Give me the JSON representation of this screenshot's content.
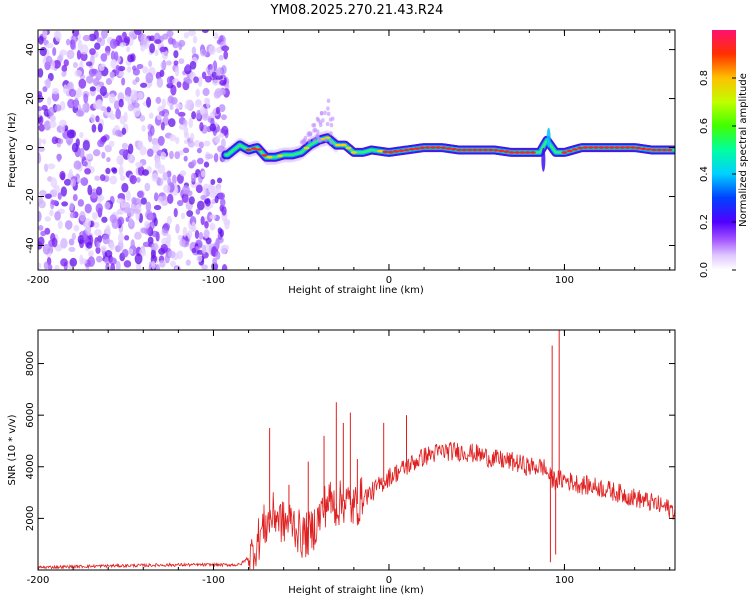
{
  "chart_data": [
    {
      "type": "heatmap",
      "title": "YM08.2025.270.21.43.R24",
      "xlabel": "Height of straight line (km)",
      "ylabel": "Frequency (Hz)",
      "xlim": [
        -200,
        163
      ],
      "ylim": [
        -50,
        48
      ],
      "xticks": [
        -200,
        -100,
        0,
        100
      ],
      "yticks": [
        -40,
        -20,
        0,
        20,
        40
      ],
      "x_tick_labels": [
        "-200",
        "-100",
        "0",
        "100"
      ],
      "y_tick_labels": [
        "-40",
        "-20",
        "0",
        "20",
        "40"
      ],
      "colorbar": {
        "label": "Normalized spectral amplitude",
        "range": [
          0,
          1
        ],
        "ticks": [
          0.0,
          0.2,
          0.4,
          0.6,
          0.8
        ],
        "tick_labels": [
          "0.0",
          "0.2",
          "0.4",
          "0.6",
          "0.8"
        ]
      },
      "noise_region_x": [
        -200,
        -92
      ],
      "ridge": [
        {
          "x": -92,
          "y": -3
        },
        {
          "x": -85,
          "y": 1
        },
        {
          "x": -80,
          "y": -1
        },
        {
          "x": -75,
          "y": 0
        },
        {
          "x": -70,
          "y": -4
        },
        {
          "x": -65,
          "y": -4
        },
        {
          "x": -60,
          "y": -3
        },
        {
          "x": -55,
          "y": -3
        },
        {
          "x": -50,
          "y": -2
        },
        {
          "x": -45,
          "y": 1
        },
        {
          "x": -40,
          "y": 3
        },
        {
          "x": -35,
          "y": 4
        },
        {
          "x": -30,
          "y": 1
        },
        {
          "x": -25,
          "y": 1
        },
        {
          "x": -20,
          "y": -2
        },
        {
          "x": -15,
          "y": -2
        },
        {
          "x": -10,
          "y": -1
        },
        {
          "x": 0,
          "y": -2
        },
        {
          "x": 10,
          "y": -1
        },
        {
          "x": 20,
          "y": 0
        },
        {
          "x": 30,
          "y": 0
        },
        {
          "x": 40,
          "y": -1
        },
        {
          "x": 50,
          "y": -1
        },
        {
          "x": 60,
          "y": -1
        },
        {
          "x": 70,
          "y": -2
        },
        {
          "x": 80,
          "y": -2
        },
        {
          "x": 86,
          "y": -2
        },
        {
          "x": 90,
          "y": 3
        },
        {
          "x": 95,
          "y": -2
        },
        {
          "x": 100,
          "y": -2
        },
        {
          "x": 110,
          "y": 0
        },
        {
          "x": 120,
          "y": 0
        },
        {
          "x": 130,
          "y": 0
        },
        {
          "x": 140,
          "y": 0
        },
        {
          "x": 150,
          "y": -1
        },
        {
          "x": 163,
          "y": -1
        }
      ]
    },
    {
      "type": "line",
      "xlabel": "Height of straight line (km)",
      "ylabel": "SNR (10 * v/v)",
      "xlim": [
        -200,
        163
      ],
      "ylim": [
        0,
        9300
      ],
      "xticks": [
        -200,
        -100,
        0,
        100
      ],
      "yticks": [
        2000,
        4000,
        6000,
        8000
      ],
      "x_tick_labels": [
        "-200",
        "-100",
        "0",
        "100"
      ],
      "y_tick_labels": [
        "2000",
        "4000",
        "6000",
        "8000"
      ],
      "series": [
        {
          "name": "SNR",
          "color": "#e02020",
          "x": [
            -200,
            -160,
            -120,
            -85,
            -78,
            -72,
            -65,
            -60,
            -55,
            -50,
            -45,
            -40,
            -35,
            -30,
            -25,
            -20,
            -15,
            -10,
            -5,
            0,
            5,
            10,
            20,
            30,
            40,
            50,
            60,
            70,
            80,
            88,
            93,
            96,
            100,
            105,
            110,
            120,
            130,
            140,
            150,
            163
          ],
          "values": [
            100,
            160,
            200,
            200,
            600,
            1600,
            2200,
            1800,
            1900,
            1300,
            1400,
            2000,
            2700,
            2500,
            2700,
            2400,
            2800,
            3000,
            3300,
            3600,
            3800,
            4000,
            4400,
            4600,
            4600,
            4500,
            4300,
            4200,
            4000,
            4000,
            3500,
            3500,
            3500,
            3400,
            3300,
            3200,
            3000,
            2800,
            2600,
            2300
          ]
        }
      ],
      "spikes": [
        {
          "x": -68,
          "y": 5500
        },
        {
          "x": -57,
          "y": 3300
        },
        {
          "x": -46,
          "y": 4200
        },
        {
          "x": -37,
          "y": 5200
        },
        {
          "x": -30,
          "y": 6500
        },
        {
          "x": -26,
          "y": 5700
        },
        {
          "x": -22,
          "y": 6100
        },
        {
          "x": -18,
          "y": 4300
        },
        {
          "x": -3,
          "y": 5700
        },
        {
          "x": 10,
          "y": 6000
        },
        {
          "x": 93,
          "y": 8700
        },
        {
          "x": 97,
          "y": 9300
        }
      ],
      "dips": [
        {
          "x": 92,
          "y": 300
        },
        {
          "x": 95,
          "y": 600
        }
      ]
    }
  ]
}
